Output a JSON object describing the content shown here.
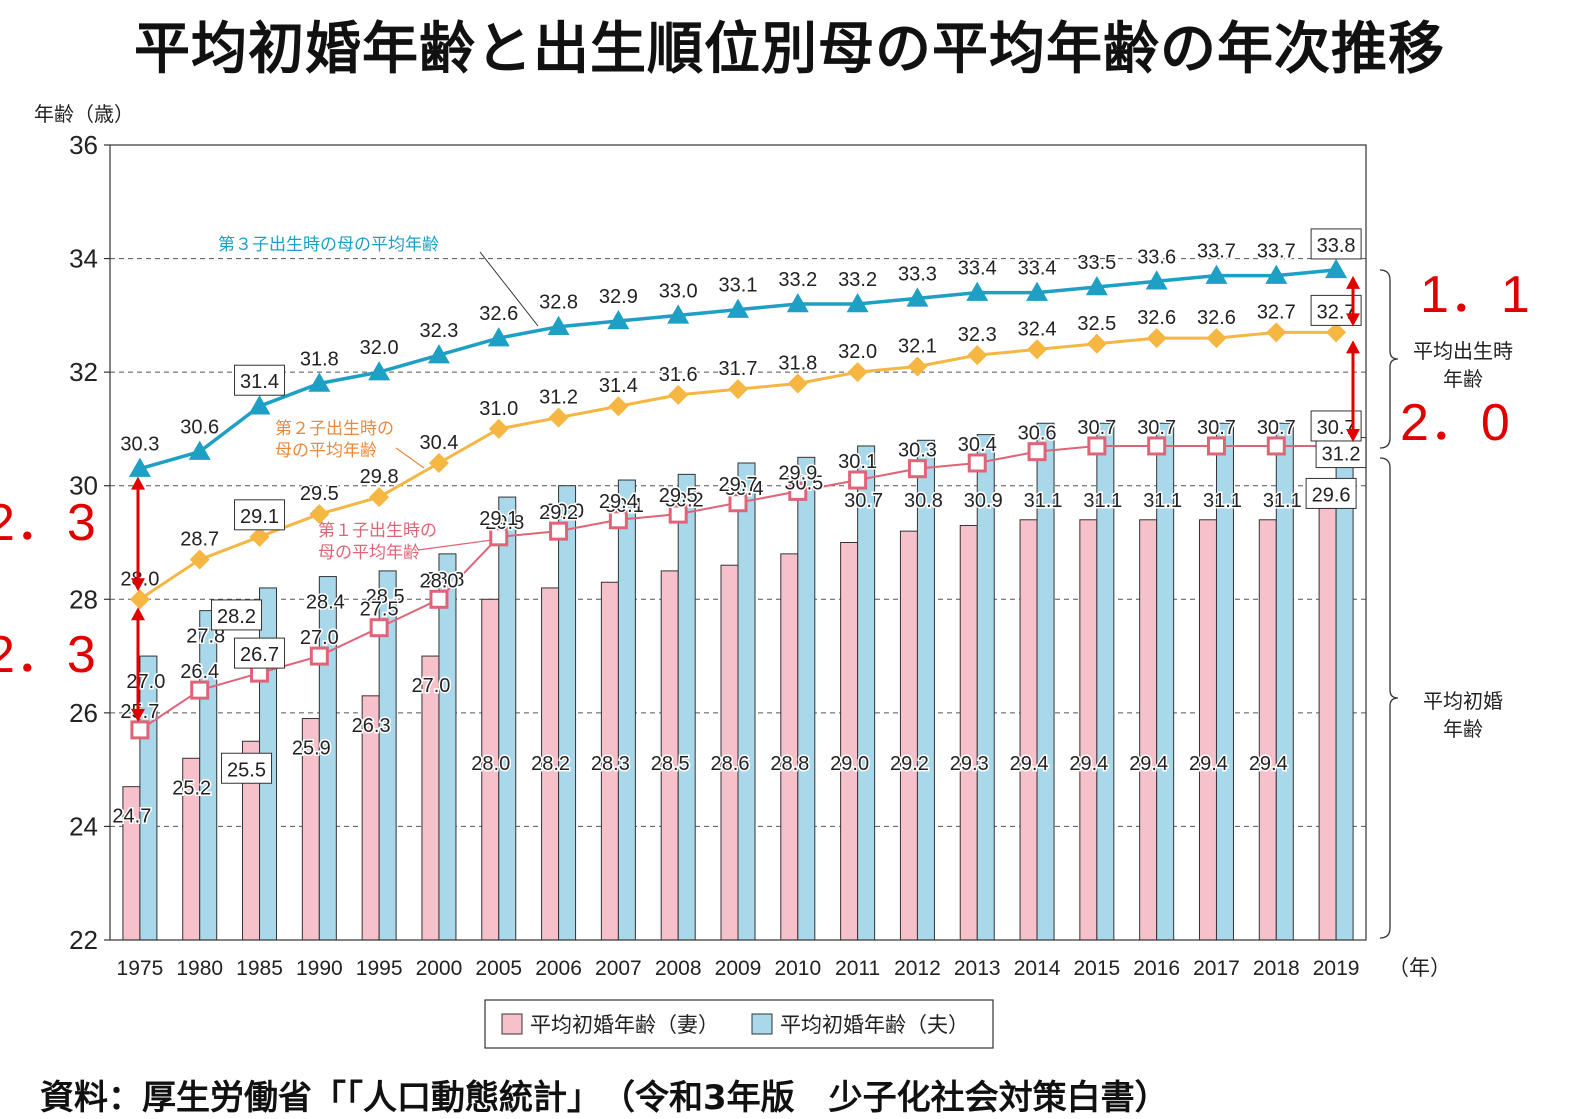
{
  "title": "平均初婚年齢と出生順位別母の平均年齢の年次推移",
  "source": "資料：厚生労働省「「人口動態統計」　（令和3年版　少子化社会対策白書）",
  "chart_data": {
    "type": "bar",
    "ylabel": "年齢（歳）",
    "xunit": "（年）",
    "ylim": [
      22,
      36
    ],
    "yticks": [
      22,
      24,
      26,
      28,
      30,
      32,
      34,
      36
    ],
    "grid": true,
    "categories": [
      "1975",
      "1980",
      "1985",
      "1990",
      "1995",
      "2000",
      "2005",
      "2006",
      "2007",
      "2008",
      "2009",
      "2010",
      "2011",
      "2012",
      "2013",
      "2014",
      "2015",
      "2016",
      "2017",
      "2018",
      "2019"
    ],
    "series": [
      {
        "name": "平均初婚年齢（妻）",
        "kind": "bar",
        "color": "#f7c1cb",
        "values": [
          24.7,
          25.2,
          25.5,
          25.9,
          26.3,
          27.0,
          28.0,
          28.2,
          28.3,
          28.5,
          28.6,
          28.8,
          29.0,
          29.2,
          29.3,
          29.4,
          29.4,
          29.4,
          29.4,
          29.4,
          29.6
        ]
      },
      {
        "name": "平均初婚年齢（夫）",
        "kind": "bar",
        "color": "#a9d8ea",
        "values": [
          27.0,
          27.8,
          28.2,
          28.4,
          28.5,
          28.8,
          29.8,
          30.0,
          30.1,
          30.2,
          30.4,
          30.5,
          30.7,
          30.8,
          30.9,
          31.1,
          31.1,
          31.1,
          31.1,
          31.1,
          31.2
        ]
      },
      {
        "name": "第１子出生時の母の平均年齢",
        "kind": "line",
        "marker": "square",
        "color": "#e06478",
        "values": [
          25.7,
          26.4,
          26.7,
          27.0,
          27.5,
          28.0,
          29.1,
          29.2,
          29.4,
          29.5,
          29.7,
          29.9,
          30.1,
          30.3,
          30.4,
          30.6,
          30.7,
          30.7,
          30.7,
          30.7,
          30.7
        ]
      },
      {
        "name": "第２子出生時の母の平均年齢",
        "kind": "line",
        "marker": "diamond",
        "color": "#f5b642",
        "values": [
          28.0,
          28.7,
          29.1,
          29.5,
          29.8,
          30.4,
          31.0,
          31.2,
          31.4,
          31.6,
          31.7,
          31.8,
          32.0,
          32.1,
          32.3,
          32.4,
          32.5,
          32.6,
          32.6,
          32.7,
          32.7
        ]
      },
      {
        "name": "第３子出生時の母の平均年齢",
        "kind": "line",
        "marker": "triangle",
        "color": "#1e9fc4",
        "values": [
          30.3,
          30.6,
          31.4,
          31.8,
          32.0,
          32.3,
          32.6,
          32.8,
          32.9,
          33.0,
          33.1,
          33.2,
          33.2,
          33.3,
          33.4,
          33.4,
          33.5,
          33.6,
          33.7,
          33.7,
          33.8
        ]
      }
    ],
    "annotations": {
      "line3_label": "第３子出生時の母の平均年齢",
      "line2_label_1": "第２子出生時の",
      "line2_label_2": "母の平均年齢",
      "line1_label_1": "第１子出生時の",
      "line1_label_2": "母の平均年齢",
      "brace_upper_1": "平均出生時",
      "brace_upper_2": "年齢",
      "brace_lower_1": "平均初婚",
      "brace_lower_2": "年齢",
      "gap_2019_upper": "1．1",
      "gap_2019_lower": "2．0",
      "gap_1975_upper": "2．3",
      "gap_1975_lower": "2．3"
    },
    "legend": [
      "平均初婚年齢（妻）",
      "平均初婚年齢（夫）"
    ],
    "legend_position": "bottom"
  }
}
